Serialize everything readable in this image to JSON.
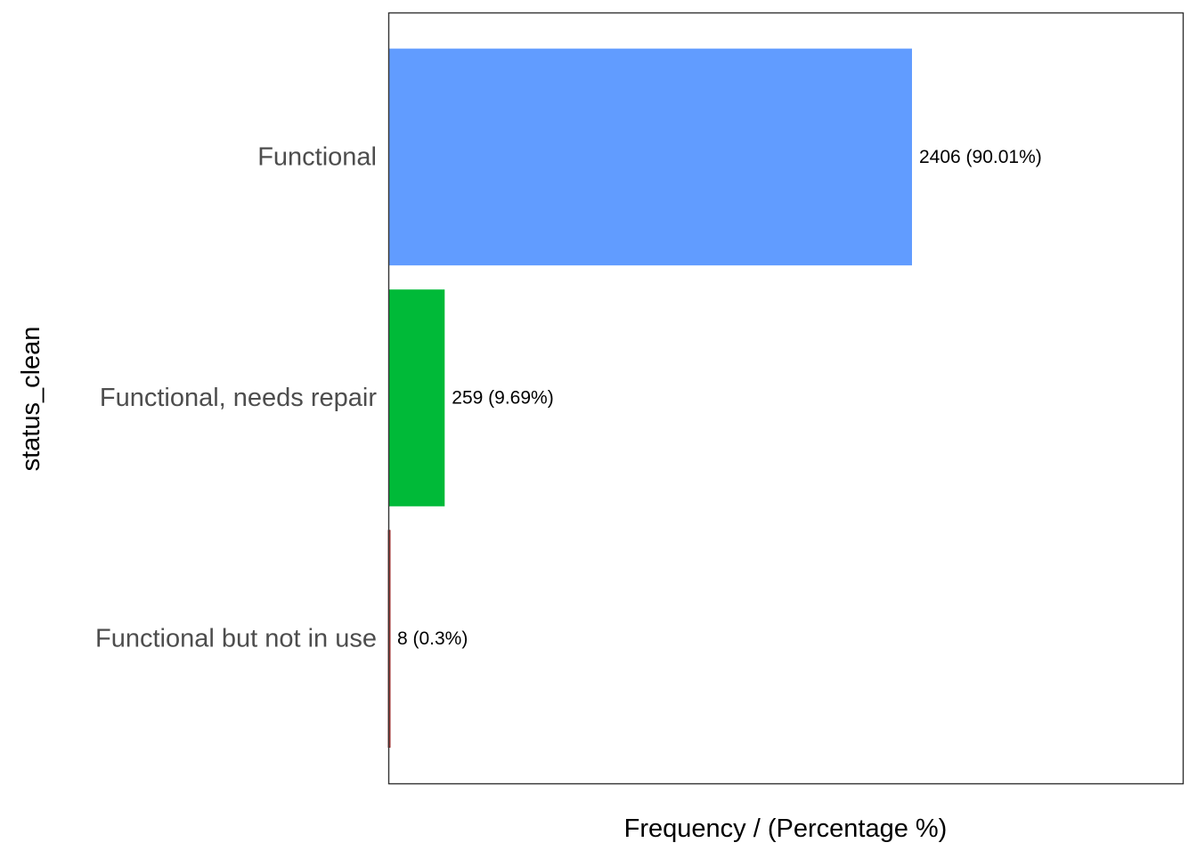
{
  "chart_data": {
    "type": "bar",
    "orientation": "horizontal",
    "categories": [
      "Functional",
      "Functional, needs repair",
      "Functional but not in use"
    ],
    "values": [
      2406,
      259,
      8
    ],
    "percentages": [
      90.01,
      9.69,
      0.3
    ],
    "data_labels": [
      "2406 (90.01%)",
      "259 (9.69%)",
      "8 (0.3%)"
    ],
    "colors": [
      "#619CFF",
      "#00BA38",
      "#F8766D"
    ],
    "xlabel": "Frequency / (Percentage %)",
    "ylabel": "status_clean",
    "xlim": [
      0,
      3650
    ],
    "grid": false,
    "x_ticks_shown": false,
    "panel_border": true
  }
}
